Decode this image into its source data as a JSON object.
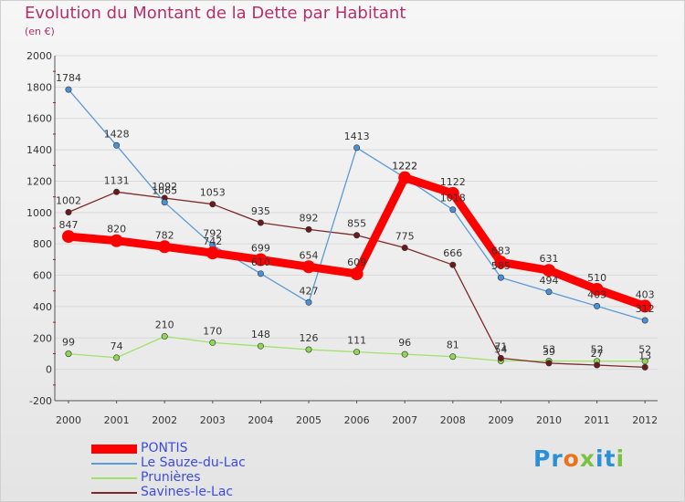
{
  "title": "Evolution du Montant de la Dette par Habitant",
  "subtitle": "(en €)",
  "brand": {
    "text": "Proxiti",
    "letters": [
      "P",
      "r",
      "o",
      "x",
      "i",
      "t",
      "i"
    ],
    "colors": [
      "#2b8fd6",
      "#2b8fd6",
      "#e8731c",
      "#7cc242",
      "#2b8fd6",
      "#2b8fd6",
      "#7cc242"
    ]
  },
  "chart_data": {
    "type": "line",
    "x": [
      "2000",
      "2001",
      "2002",
      "2003",
      "2004",
      "2005",
      "2006",
      "2007",
      "2008",
      "2009",
      "2010",
      "2011",
      "2012"
    ],
    "ylim": [
      -200,
      2000
    ],
    "yticks": [
      "-200",
      "0",
      "200",
      "400",
      "600",
      "800",
      "1000",
      "1200",
      "1400",
      "1600",
      "1800",
      "2000"
    ],
    "grid": true,
    "legend_position": "bottom-left",
    "series": [
      {
        "name": "PONTIS",
        "color": "#ff0000",
        "values": [
          847,
          820,
          782,
          742,
          699,
          654,
          609,
          1222,
          1122,
          683,
          631,
          510,
          403
        ]
      },
      {
        "name": "Le Sauze-du-Lac",
        "color": "#5b9bd5",
        "values": [
          1784,
          1428,
          1065,
          792,
          610,
          427,
          1413,
          1222,
          1018,
          585,
          494,
          403,
          312
        ]
      },
      {
        "name": "Prunières",
        "color": "#9fe36a",
        "values": [
          99,
          74,
          210,
          170,
          148,
          126,
          111,
          96,
          81,
          54,
          53,
          52,
          52
        ]
      },
      {
        "name": "Savines-le-Lac",
        "color": "#7a2a2a",
        "values": [
          1002,
          1131,
          1092,
          1053,
          935,
          892,
          855,
          775,
          666,
          71,
          39,
          27,
          13
        ]
      }
    ]
  }
}
